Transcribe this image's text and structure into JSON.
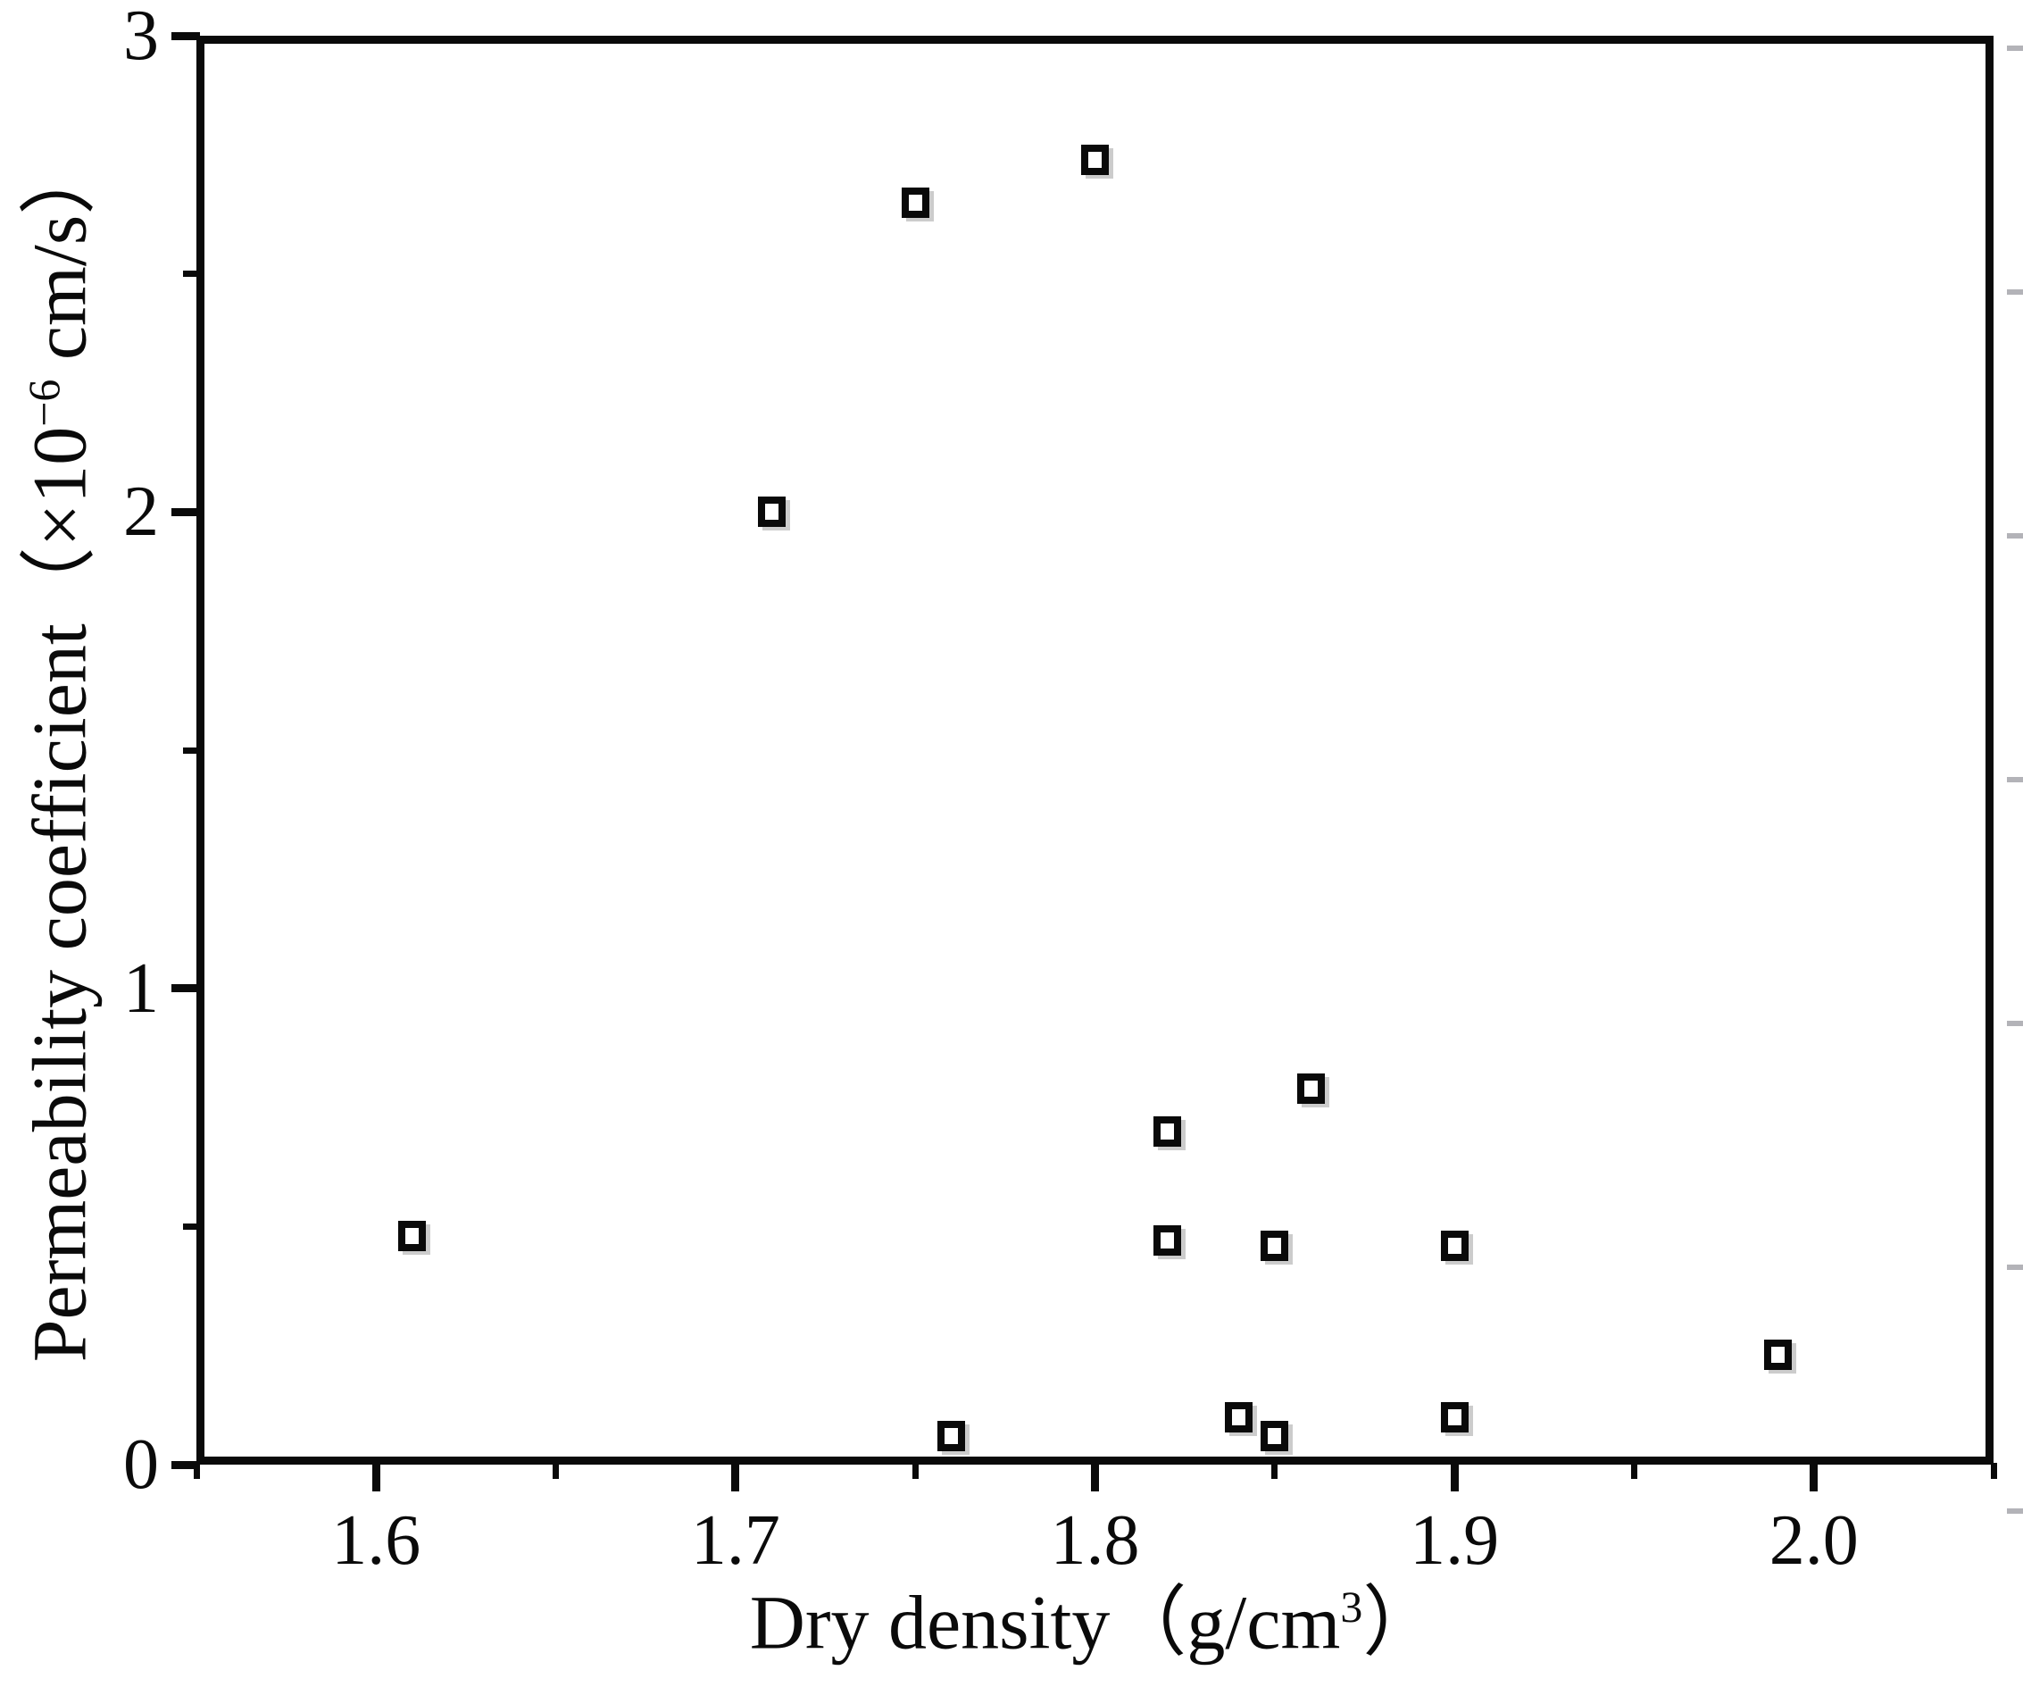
{
  "chart_data": {
    "type": "scatter",
    "title": "",
    "xlabel": "Dry density（g/cm³）",
    "ylabel": "Permeability coefficient（×10⁻⁶ cm/s）",
    "xlabel_parts": {
      "pre": "Dry density（g/cm",
      "sup": "3",
      "post": "）"
    },
    "ylabel_parts": {
      "pre": "Permeability coefficient（×10",
      "sup": "−6",
      "post": " cm/s）"
    },
    "xlim": [
      1.55,
      2.05
    ],
    "ylim": [
      0,
      3
    ],
    "grid": false,
    "legend": "none",
    "marker_style": "open-square",
    "x_major_ticks": [
      {
        "value": 1.6,
        "label": "1.6"
      },
      {
        "value": 1.7,
        "label": "1.7"
      },
      {
        "value": 1.8,
        "label": "1.8"
      },
      {
        "value": 1.9,
        "label": "1.9"
      },
      {
        "value": 2.0,
        "label": "2.0"
      }
    ],
    "x_minor_ticks": [
      1.55,
      1.65,
      1.75,
      1.85,
      1.95,
      2.05
    ],
    "y_major_ticks": [
      {
        "value": 0,
        "label": "0"
      },
      {
        "value": 1,
        "label": "1"
      },
      {
        "value": 2,
        "label": "2"
      },
      {
        "value": 3,
        "label": "3"
      }
    ],
    "y_minor_ticks": [
      0.5,
      1.5,
      2.5
    ],
    "points": [
      {
        "x": 1.61,
        "y": 0.48
      },
      {
        "x": 1.71,
        "y": 2.0
      },
      {
        "x": 1.75,
        "y": 2.65
      },
      {
        "x": 1.76,
        "y": 0.06
      },
      {
        "x": 1.8,
        "y": 2.74
      },
      {
        "x": 1.82,
        "y": 0.7
      },
      {
        "x": 1.82,
        "y": 0.47
      },
      {
        "x": 1.84,
        "y": 0.1
      },
      {
        "x": 1.85,
        "y": 0.46
      },
      {
        "x": 1.85,
        "y": 0.06
      },
      {
        "x": 1.86,
        "y": 0.79
      },
      {
        "x": 1.9,
        "y": 0.46
      },
      {
        "x": 1.9,
        "y": 0.1
      },
      {
        "x": 1.99,
        "y": 0.23
      }
    ]
  },
  "colors": {
    "ink": "#0a0a0a",
    "background": "#ffffff",
    "scan_artifact": "#b3b3b8"
  },
  "scan_artifacts": {
    "right_edge_dash_count": 7,
    "right_edge_dash_start_y": 54,
    "right_edge_dash_spacing": 273
  }
}
